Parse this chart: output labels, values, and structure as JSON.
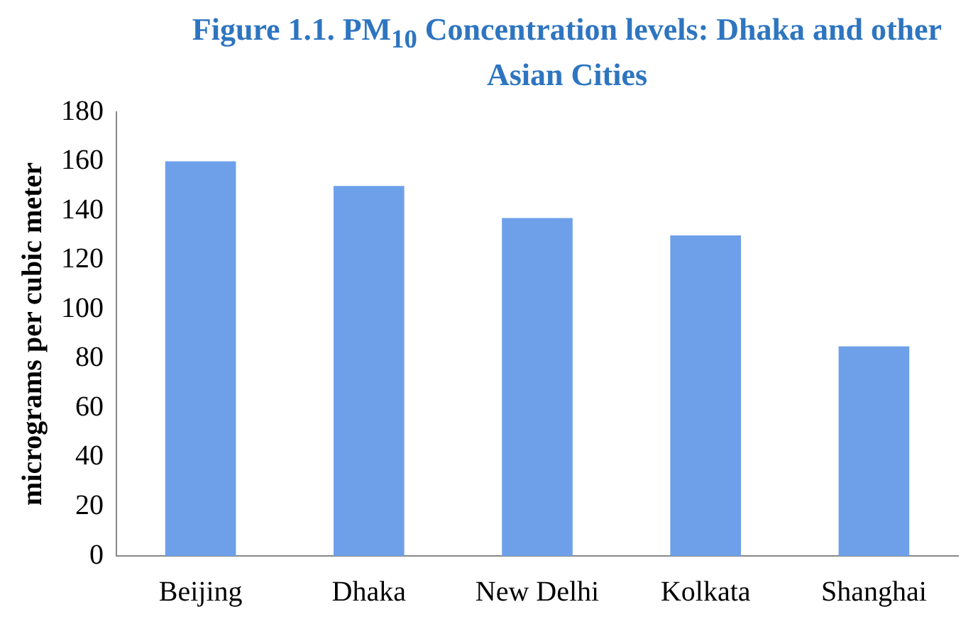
{
  "chart_data": {
    "type": "bar",
    "title": "Figure 1.1. PM$_{10}$ Concentration levels: Dhaka and  other Asian Cities",
    "ylabel": "micrograms per cubic meter",
    "categories": [
      "Beijing",
      "Dhaka",
      "New Delhi",
      "Kolkata",
      "Shanghai"
    ],
    "values": [
      160,
      150,
      137,
      130,
      85
    ],
    "color": "#6ea0ea",
    "ylim": [
      0,
      180
    ],
    "yticks": [
      0,
      20,
      40,
      60,
      80,
      100,
      120,
      140,
      160,
      180
    ],
    "grid": false,
    "legend": false
  }
}
